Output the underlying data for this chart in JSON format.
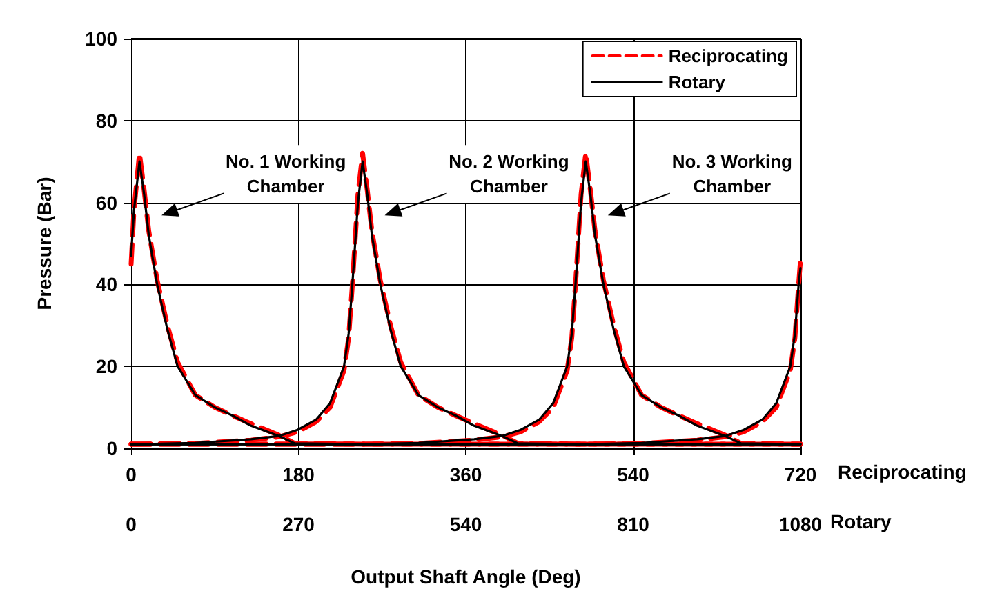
{
  "chart_data": {
    "type": "line",
    "xlabel": "Output Shaft Angle (Deg)",
    "ylabel": "Pressure (Bar)",
    "x2label": "Rotary",
    "xlim": [
      0,
      720
    ],
    "xticks": [
      0,
      180,
      360,
      540,
      720
    ],
    "x2lim": [
      0,
      1080
    ],
    "x2ticks": [
      0,
      270,
      540,
      810,
      1080
    ],
    "ylim": [
      0,
      100
    ],
    "yticks": [
      0,
      20,
      40,
      60,
      80,
      100
    ],
    "grid": true,
    "legend": "top right",
    "marker": "none",
    "annotations": [
      "Reciprocating",
      "No. 1 Working\nChamber",
      "No. 2 Working\nChamber",
      "No. 3 Working\nChamber"
    ],
    "series": [
      {
        "name": "Reciprocating",
        "color": "#ff0000",
        "line_style": "dashed",
        "x": [
          0,
          3,
          9,
          14,
          19,
          28,
          39,
          50,
          69,
          90,
          109,
          129,
          159,
          176,
          249,
          720
        ],
        "values": [
          45,
          58,
          72,
          63,
          53,
          41,
          30,
          21,
          13,
          10,
          8,
          6,
          3.2,
          1.2,
          1,
          1
        ]
      },
      {
        "color": "#ff0000",
        "line_style": "dashed",
        "x": [
          0,
          9,
          69,
          129,
          159,
          179,
          199,
          214,
          229,
          234,
          238,
          244,
          249,
          254,
          259,
          268,
          279,
          290,
          309,
          330,
          349,
          369,
          399,
          416,
          489,
          720
        ],
        "values": [
          1,
          1,
          1.2,
          2,
          2.8,
          4,
          6.5,
          10,
          19,
          27,
          40,
          62,
          72,
          63,
          53,
          41,
          30,
          21,
          13,
          10,
          8,
          6,
          3.2,
          1.2,
          1,
          1
        ]
      },
      {
        "color": "#ff0000",
        "line_style": "dashed",
        "x": [
          0,
          249,
          309,
          369,
          399,
          419,
          439,
          454,
          469,
          474,
          478,
          484,
          489,
          494,
          499,
          508,
          519,
          530,
          549,
          570,
          589,
          609,
          639,
          656,
          720
        ],
        "values": [
          1,
          1,
          1.2,
          2,
          2.8,
          4,
          6.5,
          10,
          19,
          27,
          40,
          62,
          72,
          63,
          53,
          41,
          30,
          21,
          13,
          10,
          8,
          6,
          3.2,
          1.2,
          1
        ]
      },
      {
        "color": "#ff0000",
        "line_style": "dashed",
        "x": [
          0,
          489,
          549,
          609,
          639,
          659,
          679,
          694,
          709,
          714,
          718,
          720
        ],
        "values": [
          1,
          1,
          1.2,
          2,
          2.8,
          4,
          6.5,
          10,
          19,
          27,
          40,
          46
        ]
      },
      {
        "name": "Rotary",
        "color": "#000000",
        "line_style": "solid",
        "x": [
          0,
          3,
          9,
          14,
          19,
          28,
          39,
          50,
          69,
          90,
          109,
          129,
          159,
          176,
          249,
          720
        ],
        "values": [
          47,
          58,
          70,
          62,
          52,
          40,
          29,
          20,
          13,
          10,
          8,
          5.5,
          3,
          1.2,
          1,
          1
        ]
      },
      {
        "color": "#000000",
        "line_style": "solid",
        "x": [
          0,
          9,
          69,
          129,
          159,
          179,
          199,
          214,
          229,
          234,
          238,
          244,
          249,
          254,
          259,
          268,
          279,
          290,
          309,
          330,
          349,
          369,
          399,
          416,
          489,
          720
        ],
        "values": [
          1,
          1,
          1.3,
          2.2,
          3,
          4.5,
          7,
          11,
          20,
          28,
          40,
          60,
          70,
          62,
          52,
          40,
          29,
          20,
          13,
          10,
          8,
          5.5,
          3,
          1.2,
          1,
          1
        ]
      },
      {
        "color": "#000000",
        "line_style": "solid",
        "x": [
          0,
          249,
          309,
          369,
          399,
          419,
          439,
          454,
          469,
          474,
          478,
          484,
          489,
          494,
          499,
          508,
          519,
          530,
          549,
          570,
          589,
          609,
          639,
          656,
          720
        ],
        "values": [
          1,
          1,
          1.3,
          2.2,
          3,
          4.5,
          7,
          11,
          20,
          28,
          40,
          60,
          70,
          62,
          52,
          40,
          29,
          20,
          13,
          10,
          8,
          5.5,
          3,
          1.2,
          1
        ]
      },
      {
        "color": "#000000",
        "line_style": "solid",
        "x": [
          0,
          489,
          549,
          609,
          639,
          659,
          679,
          694,
          709,
          714,
          718,
          720
        ],
        "values": [
          1,
          1,
          1.3,
          2.2,
          3,
          4.5,
          7,
          11,
          20,
          28,
          40,
          44
        ]
      }
    ]
  }
}
